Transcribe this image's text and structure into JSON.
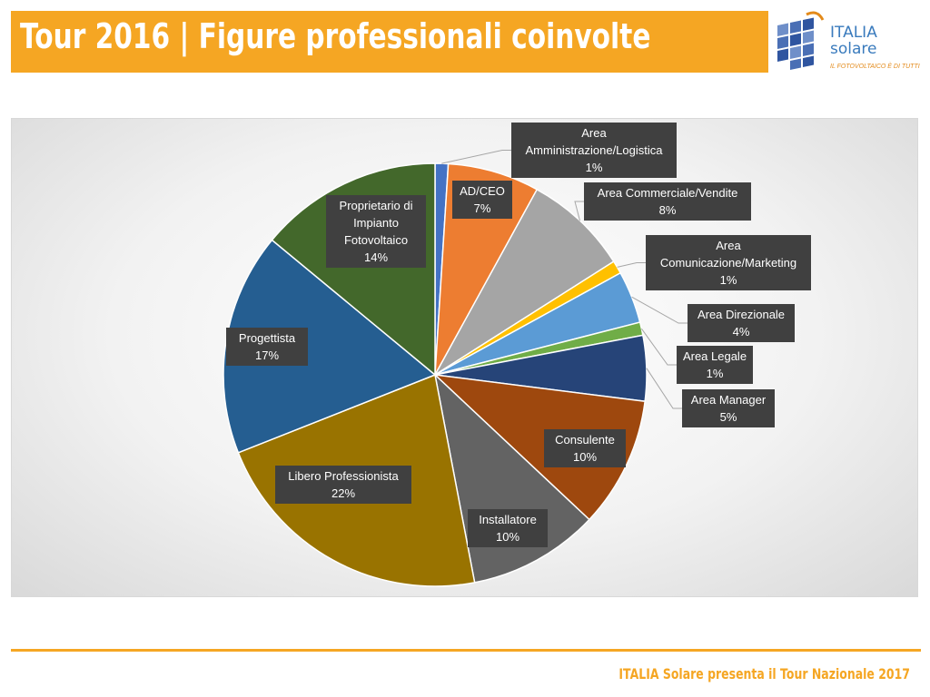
{
  "header": {
    "title": "Tour 2016 | Figure professionali coinvolte",
    "accent_color": "#f5a623"
  },
  "logo": {
    "name": "ITALIA",
    "sub": "solare",
    "tagline": "IL FOTOVOLTAICO È DI TUTTI",
    "icon": "solar-panel-icon"
  },
  "footer": {
    "text": "ITALIA Solare presenta il Tour Nazionale 2017"
  },
  "chart_data": {
    "type": "pie",
    "title": "",
    "start_angle_deg": 0,
    "direction": "clockwise",
    "slices": [
      {
        "label": "Area Amministrazione/Logistica",
        "value": 1,
        "display": "1%",
        "color": "#4472c4"
      },
      {
        "label": "AD/CEO",
        "value": 7,
        "display": "7%",
        "color": "#ed7d31"
      },
      {
        "label": "Area Commerciale/Vendite",
        "value": 8,
        "display": "8%",
        "color": "#a5a5a5"
      },
      {
        "label": "Area Comunicazione/Marketing",
        "value": 1,
        "display": "1%",
        "color": "#ffc000"
      },
      {
        "label": "Area Direzionale",
        "value": 4,
        "display": "4%",
        "color": "#5b9bd5"
      },
      {
        "label": "Area Legale",
        "value": 1,
        "display": "1%",
        "color": "#70ad47"
      },
      {
        "label": "Area Manager",
        "value": 5,
        "display": "5%",
        "color": "#264478"
      },
      {
        "label": "Consulente",
        "value": 10,
        "display": "10%",
        "color": "#9e480e"
      },
      {
        "label": "Installatore",
        "value": 10,
        "display": "10%",
        "color": "#636363"
      },
      {
        "label": "Libero Professionista",
        "value": 22,
        "display": "22%",
        "color": "#997300"
      },
      {
        "label": "Progettista",
        "value": 17,
        "display": "17%",
        "color": "#255e91"
      },
      {
        "label": "Proprietario di Impianto Fotovoltaico",
        "value": 14,
        "display": "14%",
        "color": "#43682b"
      }
    ]
  }
}
